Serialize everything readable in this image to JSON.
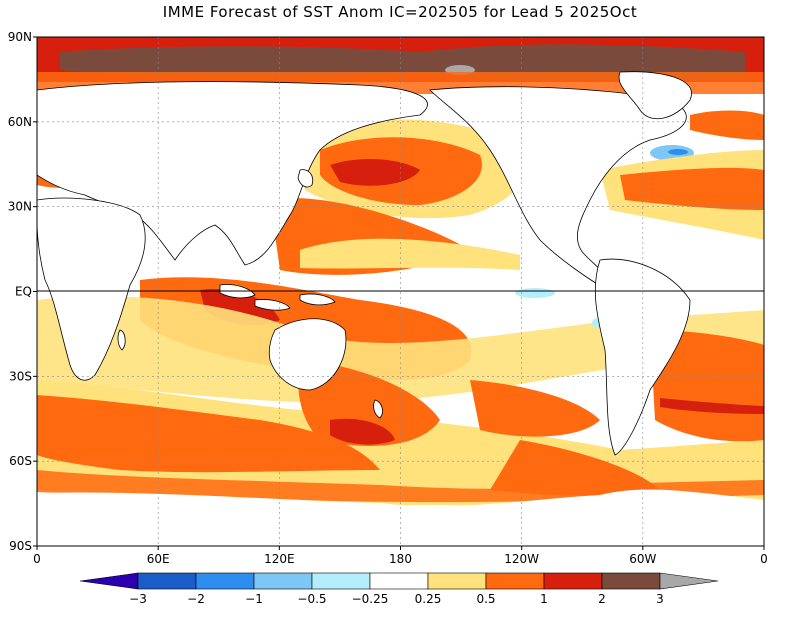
{
  "title": "IMME Forecast of SST Anom IC=202505 for Lead 5 2025Oct",
  "map": {
    "projection": "latlon",
    "lat_ticks": [
      {
        "lat": 90,
        "label": "90N"
      },
      {
        "lat": 60,
        "label": "60N"
      },
      {
        "lat": 30,
        "label": "30N"
      },
      {
        "lat": 0,
        "label": "EQ"
      },
      {
        "lat": -30,
        "label": "30S"
      },
      {
        "lat": -60,
        "label": "60S"
      },
      {
        "lat": -90,
        "label": "90S"
      }
    ],
    "lon_ticks": [
      {
        "lon": 0,
        "label": "0"
      },
      {
        "lon": 60,
        "label": "60E"
      },
      {
        "lon": 120,
        "label": "120E"
      },
      {
        "lon": 180,
        "label": "180"
      },
      {
        "lon": 240,
        "label": "120W"
      },
      {
        "lon": 300,
        "label": "60W"
      },
      {
        "lon": 360,
        "label": "0"
      }
    ]
  },
  "colorbar": {
    "colors": [
      "#2b00b0",
      "#1a5cc8",
      "#2d8ef0",
      "#7ec6f5",
      "#b4eefa",
      "#ffffff",
      "#ffe27c",
      "#ff6a10",
      "#d6200d",
      "#7a4a3c",
      "#a8a8a8"
    ],
    "labels": [
      "−3",
      "−2",
      "−1",
      "−0.5",
      "−0.25",
      "0.25",
      "0.5",
      "1",
      "2",
      "3"
    ]
  },
  "palette": {
    "warm_light": "#ffe27c",
    "warm_mid": "#ff6a10",
    "warm_high": "#d6200d",
    "warm_extreme": "#7a4a3c",
    "cool_light": "#b4eefa",
    "cool_mid": "#7ec6f5",
    "land": "#ffffff",
    "coast": "#000000"
  }
}
